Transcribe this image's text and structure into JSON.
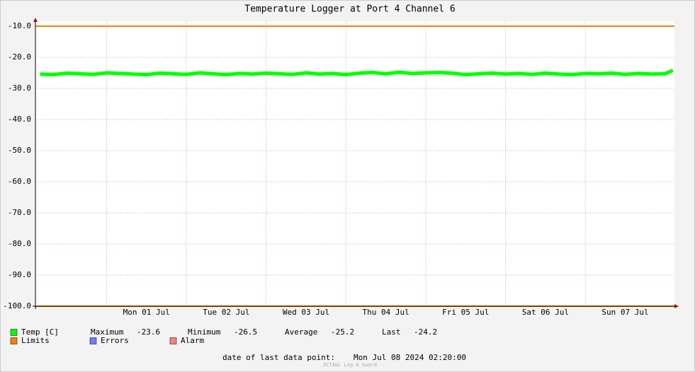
{
  "chart_data": {
    "type": "line",
    "title": "Temperature Logger at Port 4 Channel 6",
    "x": [
      "2024-06-30 04:00",
      "2024-06-30 08:00",
      "2024-06-30 12:00",
      "2024-06-30 16:00",
      "2024-06-30 20:00",
      "2024-07-01 00:00",
      "2024-07-01 04:00",
      "2024-07-01 08:00",
      "2024-07-01 12:00",
      "2024-07-01 16:00",
      "2024-07-01 20:00",
      "2024-07-02 00:00",
      "2024-07-02 04:00",
      "2024-07-02 08:00",
      "2024-07-02 12:00",
      "2024-07-02 16:00",
      "2024-07-02 20:00",
      "2024-07-03 00:00",
      "2024-07-03 04:00",
      "2024-07-03 08:00",
      "2024-07-03 12:00",
      "2024-07-03 16:00",
      "2024-07-03 20:00",
      "2024-07-04 00:00",
      "2024-07-04 04:00",
      "2024-07-04 08:00",
      "2024-07-04 12:00",
      "2024-07-04 16:00",
      "2024-07-04 20:00",
      "2024-07-05 00:00",
      "2024-07-05 04:00",
      "2024-07-05 08:00",
      "2024-07-05 12:00",
      "2024-07-05 16:00",
      "2024-07-05 20:00",
      "2024-07-06 00:00",
      "2024-07-06 04:00",
      "2024-07-06 08:00",
      "2024-07-06 12:00",
      "2024-07-06 16:00",
      "2024-07-06 20:00",
      "2024-07-07 00:00",
      "2024-07-07 04:00",
      "2024-07-07 08:00",
      "2024-07-07 12:00",
      "2024-07-07 16:00",
      "2024-07-07 20:00",
      "2024-07-08 00:00",
      "2024-07-08 02:20"
    ],
    "series": [
      {
        "name": "Temp [C]",
        "color": "#00ff00",
        "values": [
          -25.4,
          -25.6,
          -25.1,
          -25.3,
          -25.5,
          -25.0,
          -25.2,
          -25.4,
          -25.6,
          -25.1,
          -25.3,
          -25.5,
          -25.0,
          -25.3,
          -25.6,
          -25.2,
          -25.4,
          -25.1,
          -25.3,
          -25.5,
          -25.0,
          -25.4,
          -25.2,
          -25.6,
          -25.1,
          -24.9,
          -25.3,
          -24.8,
          -25.2,
          -25.0,
          -24.9,
          -25.1,
          -25.6,
          -25.3,
          -25.1,
          -25.4,
          -25.2,
          -25.5,
          -25.1,
          -25.4,
          -25.6,
          -25.2,
          -25.3,
          -25.1,
          -25.5,
          -25.2,
          -25.4,
          -25.3,
          -24.2
        ]
      },
      {
        "name": "Limits",
        "color": "#ff7f00",
        "limits": [
          -10,
          -100
        ]
      },
      {
        "name": "Errors",
        "color": "#6e7cff"
      },
      {
        "name": "Alarm",
        "color": "#ff7f7f"
      }
    ],
    "stats": [
      {
        "name": "Maximum",
        "value": -23.6
      },
      {
        "name": "Minimum",
        "value": -26.5
      },
      {
        "name": "Average",
        "value": -25.2
      },
      {
        "name": "Last",
        "value": -24.2
      }
    ],
    "xlim": [
      "2024-06-30 02:36",
      "2024-07-08 02:48"
    ],
    "xticks": [
      {
        "value": "2024-07-01 12:00",
        "label": "Mon 01 Jul"
      },
      {
        "value": "2024-07-02 12:00",
        "label": "Tue 02 Jul"
      },
      {
        "value": "2024-07-03 12:00",
        "label": "Wed 03 Jul"
      },
      {
        "value": "2024-07-04 12:00",
        "label": "Thu 04 Jul"
      },
      {
        "value": "2024-07-05 12:00",
        "label": "Fri 05 Jul"
      },
      {
        "value": "2024-07-06 12:00",
        "label": "Sat 06 Jul"
      },
      {
        "value": "2024-07-07 12:00",
        "label": "Sun 07 Jul"
      }
    ],
    "xgrid": [
      "2024-07-01 00:00",
      "2024-07-02 00:00",
      "2024-07-03 00:00",
      "2024-07-04 00:00",
      "2024-07-05 00:00",
      "2024-07-06 00:00",
      "2024-07-07 00:00"
    ],
    "ylim": [
      -100,
      -10
    ],
    "yticks": [
      {
        "value": -100,
        "label": "-100.0"
      },
      {
        "value": -90,
        "label": "-90.0"
      },
      {
        "value": -80,
        "label": "-80.0"
      },
      {
        "value": -70,
        "label": "-70.0"
      },
      {
        "value": -60,
        "label": "-60.0"
      },
      {
        "value": -50,
        "label": "-50.0"
      },
      {
        "value": -40,
        "label": "-40.0"
      },
      {
        "value": -30,
        "label": "-30.0"
      },
      {
        "value": -20,
        "label": "-20.0"
      },
      {
        "value": -10,
        "label": "-10.0"
      }
    ],
    "grid": true,
    "footer": {
      "label": "date of last data point:",
      "value": "Mon Jul 08 2024 02:20:00"
    },
    "watermark": "OCTA&L Log & Guard"
  }
}
